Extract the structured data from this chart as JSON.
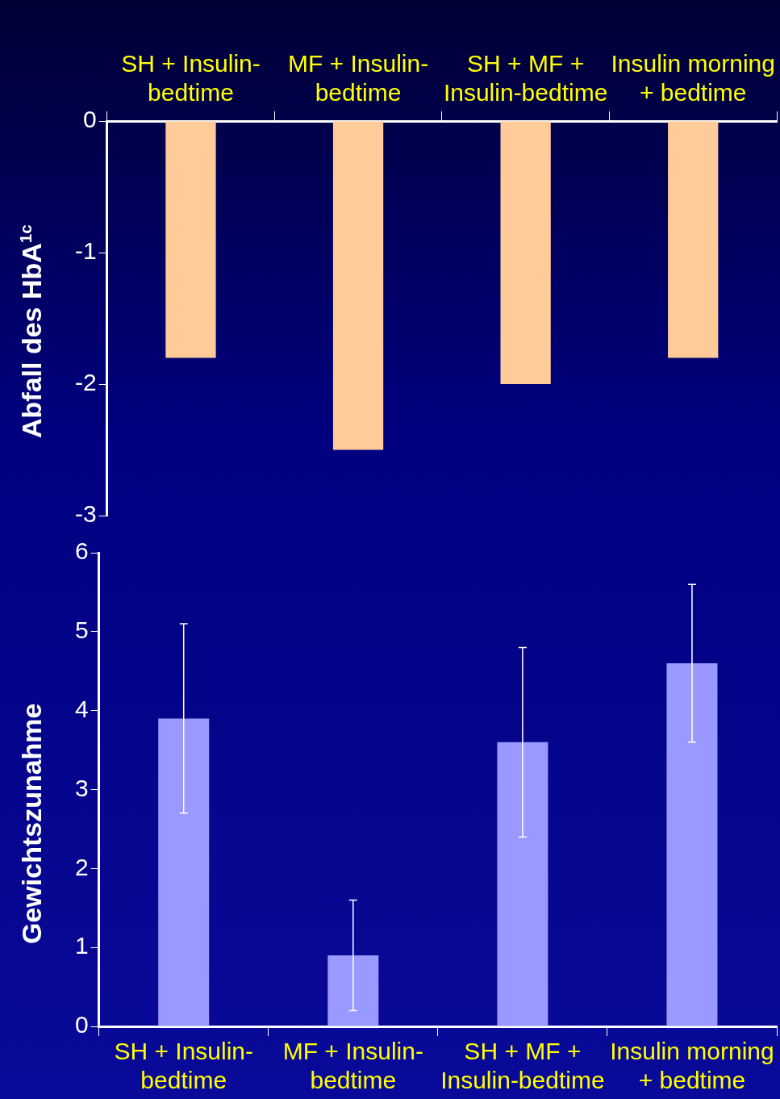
{
  "chart_data": [
    {
      "type": "bar",
      "ylabel": "Abfall des HbA$^{1c}$",
      "categories": [
        "SH + Insulin-bedtime",
        "MF + Insulin-bedtime",
        "SH + MF + Insulin-bedtime",
        "Insulin morning + bedtime"
      ],
      "values": [
        -1.8,
        -2.5,
        -2,
        -1.8
      ],
      "color": "#ffcc99",
      "ylim": [
        -3,
        0
      ],
      "yticks": [
        -3,
        -2,
        -1,
        0
      ],
      "grid": false,
      "legend": false
    },
    {
      "type": "bar",
      "ylabel": "Gewichtszunahme",
      "categories": [
        "SH + Insulin-bedtime",
        "MF + Insulin-bedtime",
        "SH + MF + Insulin-bedtime",
        "Insulin morning + bedtime"
      ],
      "values": [
        3.9,
        0.9,
        3.6,
        4.6
      ],
      "errors": [
        1.2,
        0.7,
        1.2,
        1.0
      ],
      "color": "#9999ff",
      "ylim": [
        0,
        6
      ],
      "yticks": [
        0,
        1,
        2,
        3,
        4,
        5,
        6
      ],
      "grid": false,
      "legend": false
    }
  ]
}
